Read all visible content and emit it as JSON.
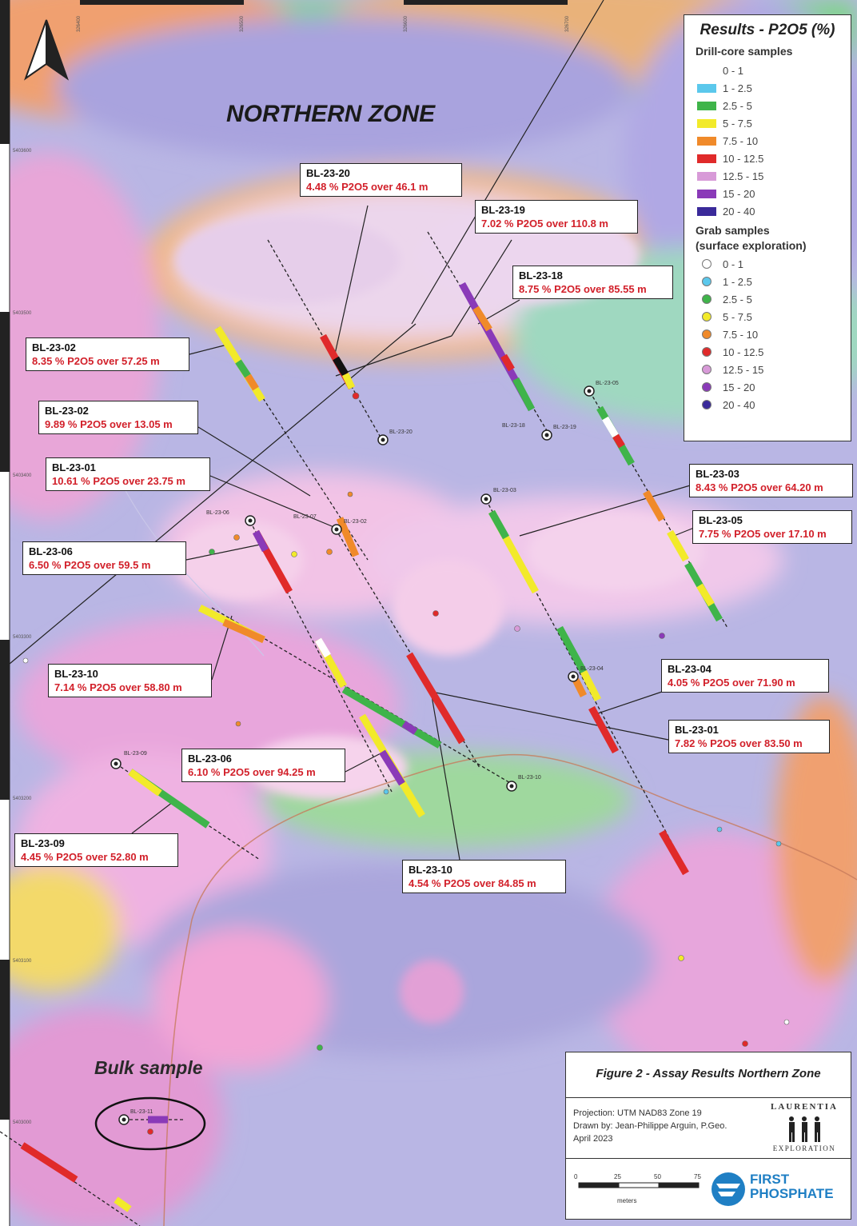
{
  "zone_title": "NORTHERN ZONE",
  "bulk_label": "Bulk sample",
  "legend": {
    "title": "Results - P2O5 (%)",
    "drill_header": "Drill-core samples",
    "grab_header_1": "Grab samples",
    "grab_header_2": "(surface exploration)",
    "classes": [
      {
        "label": "0 - 1",
        "color": "#ffffff"
      },
      {
        "label": "1 - 2.5",
        "color": "#5bc8ec"
      },
      {
        "label": "2.5 - 5",
        "color": "#3fb44a"
      },
      {
        "label": "5 - 7.5",
        "color": "#f2ea2a"
      },
      {
        "label": "7.5 - 10",
        "color": "#f08a2a"
      },
      {
        "label": "10 - 12.5",
        "color": "#e02a2a"
      },
      {
        "label": "12.5 - 15",
        "color": "#d89ad8"
      },
      {
        "label": "15 - 20",
        "color": "#8a3ab8"
      },
      {
        "label": "20 - 40",
        "color": "#3a2a9a"
      }
    ]
  },
  "callouts": [
    {
      "name": "BL-23-20",
      "result": "4.48 % P2O5 over 46.1 m"
    },
    {
      "name": "BL-23-19",
      "result": "7.02 % P2O5 over 110.8 m"
    },
    {
      "name": "BL-23-18",
      "result": "8.75 % P2O5 over 85.55 m"
    },
    {
      "name": "BL-23-02",
      "result": "8.35 % P2O5 over 57.25 m"
    },
    {
      "name": "BL-23-02",
      "result": "9.89 % P2O5 over 13.05 m"
    },
    {
      "name": "BL-23-01",
      "result": "10.61 % P2O5 over 23.75 m"
    },
    {
      "name": "BL-23-03",
      "result": "8.43 % P2O5 over 64.20 m"
    },
    {
      "name": "BL-23-05",
      "result": "7.75 % P2O5 over 17.10 m"
    },
    {
      "name": "BL-23-06",
      "result": "6.50 % P2O5 over 59.5 m"
    },
    {
      "name": "BL-23-04",
      "result": "4.05 % P2O5 over 71.90 m"
    },
    {
      "name": "BL-23-10",
      "result": "7.14 % P2O5 over 58.80 m"
    },
    {
      "name": "BL-23-01",
      "result": "7.82 % P2O5 over 83.50 m"
    },
    {
      "name": "BL-23-06",
      "result": "6.10 % P2O5 over 94.25 m"
    },
    {
      "name": "BL-23-09",
      "result": "4.45 % P2O5 over 52.80 m"
    },
    {
      "name": "BL-23-10",
      "result": "4.54 % P2O5 over 84.85 m"
    }
  ],
  "collars": [
    "BL-23-20",
    "BL-23-18",
    "BL-23-19",
    "BL-23-05",
    "BL-23-03",
    "BL-23-06",
    "BL-23-07",
    "BL-23-02",
    "BL-23-04",
    "BL-23-10",
    "BL-23-09",
    "BL-23-11"
  ],
  "grid_labels": {
    "eastings": [
      "326400",
      "326500",
      "326600",
      "326700"
    ],
    "northings": [
      "5403600",
      "5403500",
      "5403400",
      "5403300",
      "5403200",
      "5403100",
      "5403000"
    ]
  },
  "infobox": {
    "figure_title": "Figure 2 - Assay Results Northern Zone",
    "projection": "Projection: UTM NAD83 Zone 19",
    "drawn_by": "Drawn by: Jean-Philippe Arguin, P.Geo.",
    "date": "April 2023",
    "laurentia_top": "LAURENTIA",
    "laurentia_bottom": "EXPLORATION",
    "scale_ticks": [
      "0",
      "25",
      "50",
      "75"
    ],
    "scale_unit": "meters",
    "brand_1": "FIRST",
    "brand_2": "PHOSPHATE"
  },
  "colors": {
    "map_base": "#b8b4e0",
    "result_text": "#d2202a",
    "brand_blue": "#1f7fc4"
  }
}
